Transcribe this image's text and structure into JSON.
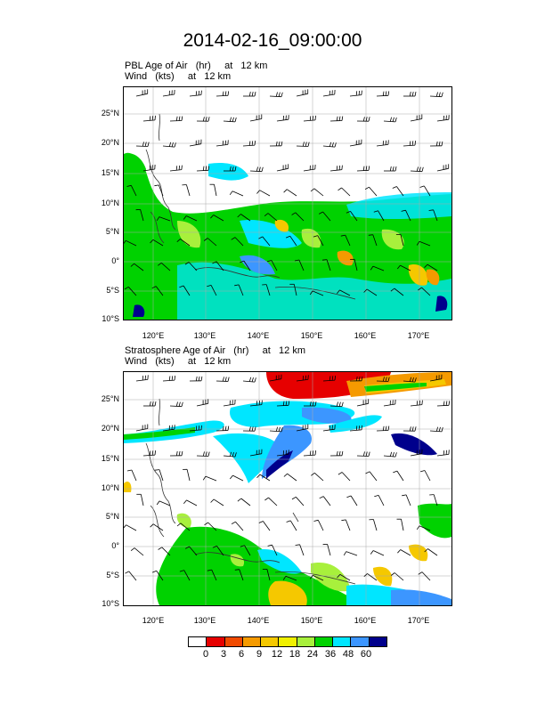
{
  "title": "2014-02-16_09:00:00",
  "panels": [
    {
      "title_line1": "PBL Age of Air   (hr)     at   12 km",
      "title_line2": "Wind   (kts)     at   12 km"
    },
    {
      "title_line1": "Stratosphere Age of Air   (hr)     at   12 km",
      "title_line2": "Wind   (kts)     at   12 km"
    }
  ],
  "axes": {
    "lat_labels": [
      "25°N",
      "20°N",
      "15°N",
      "10°N",
      "5°N",
      "0°",
      "5°S",
      "10°S"
    ],
    "lon_labels": [
      "120°E",
      "130°E",
      "140°E",
      "150°E",
      "160°E",
      "170°E"
    ]
  },
  "legend": {
    "labels": [
      "0",
      "3",
      "6",
      "9",
      "12",
      "18",
      "24",
      "36",
      "48",
      "60"
    ],
    "colors": [
      "#ffffff",
      "#e60000",
      "#f04a00",
      "#f59a00",
      "#f5c800",
      "#f0f000",
      "#a8f03c",
      "#00d200",
      "#00e6ff",
      "#3c96ff",
      "#00008c"
    ]
  }
}
